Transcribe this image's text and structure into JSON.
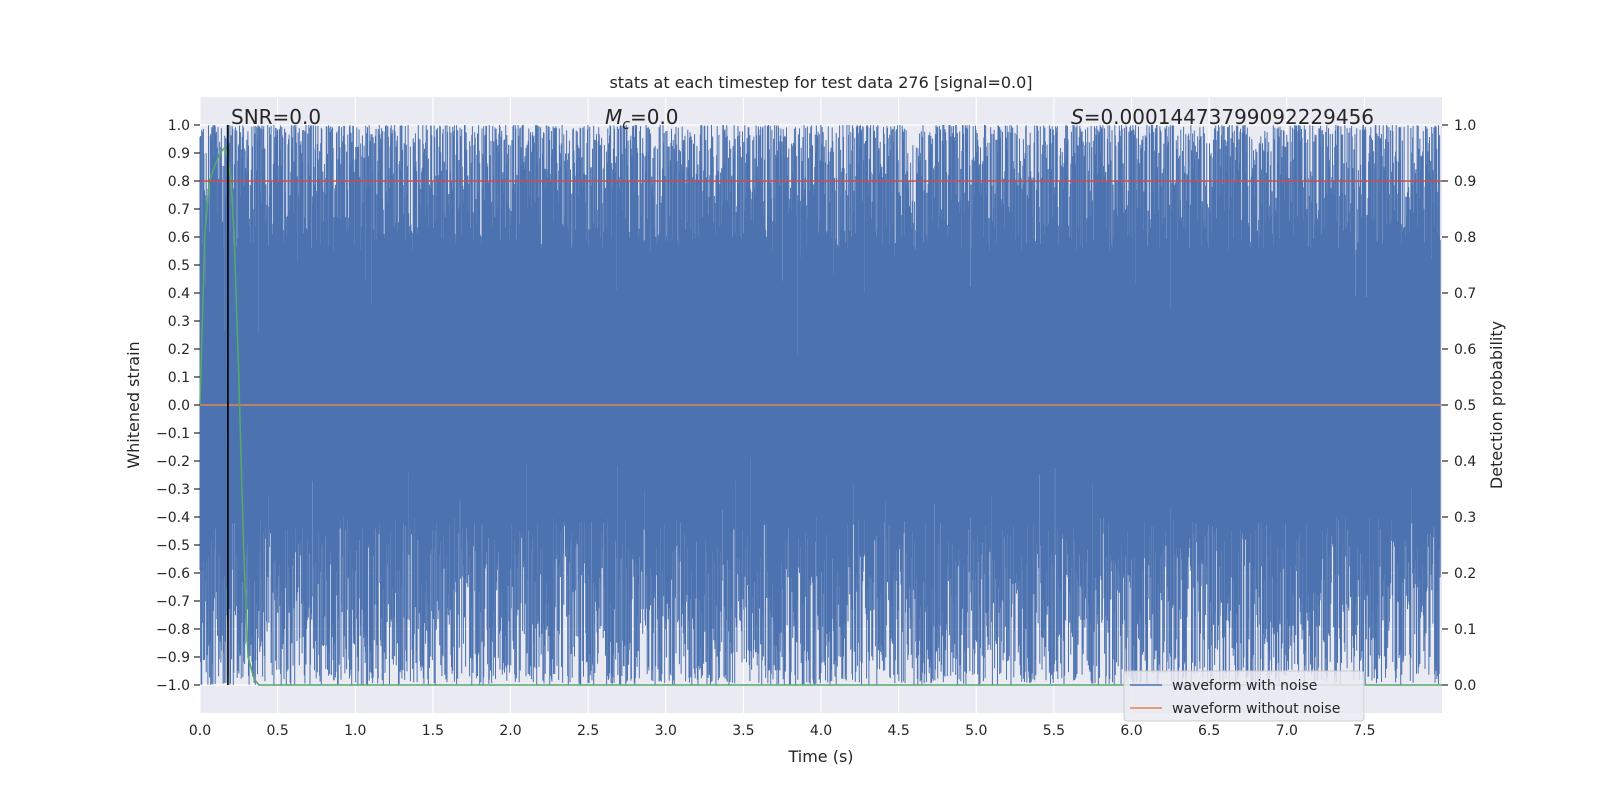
{
  "chart_data": {
    "type": "line",
    "title": "stats at each timestep for test data 276 [signal=0.0]",
    "xlabel": "Time (s)",
    "ylabel": "Whitened strain",
    "ylabel_right": "Detection probability",
    "xlim": [
      0.0,
      8.0
    ],
    "ylim": [
      -1.1,
      1.1
    ],
    "ylim_right": [
      -0.05,
      1.05
    ],
    "x_ticks": [
      0.0,
      0.5,
      1.0,
      1.5,
      2.0,
      2.5,
      3.0,
      3.5,
      4.0,
      4.5,
      5.0,
      5.5,
      6.0,
      6.5,
      7.0,
      7.5
    ],
    "x_tick_labels": [
      "0.0",
      "0.5",
      "1.0",
      "1.5",
      "2.0",
      "2.5",
      "3.0",
      "3.5",
      "4.0",
      "4.5",
      "5.0",
      "5.5",
      "6.0",
      "6.5",
      "7.0",
      "7.5"
    ],
    "y_ticks": [
      1.0,
      0.9,
      0.8,
      0.7,
      0.6,
      0.5,
      0.4,
      0.3,
      0.2,
      0.1,
      0.0,
      -0.1,
      -0.2,
      -0.3,
      -0.4,
      -0.5,
      -0.6,
      -0.7,
      -0.8,
      -0.9,
      -1.0
    ],
    "y_tick_labels": [
      "1.0",
      "0.9",
      "0.8",
      "0.7",
      "0.6",
      "0.5",
      "0.4",
      "0.3",
      "0.2",
      "0.1",
      "0.0",
      "−0.1",
      "−0.2",
      "−0.3",
      "−0.4",
      "−0.5",
      "−0.6",
      "−0.7",
      "−0.8",
      "−0.9",
      "−1.0"
    ],
    "y_right_ticks": [
      1.0,
      0.9,
      0.8,
      0.7,
      0.6,
      0.5,
      0.4,
      0.3,
      0.2,
      0.1,
      0.0
    ],
    "y_right_tick_labels": [
      "1.0",
      "0.9",
      "0.8",
      "0.7",
      "0.6",
      "0.5",
      "0.4",
      "0.3",
      "0.2",
      "0.1",
      "0.0"
    ],
    "grid": true,
    "legend_position": "lower-right",
    "annotations": {
      "snr": "SNR=0.0",
      "mc_symbol": "M",
      "mc_sub": "c",
      "mc_value": "=0.0",
      "s_symbol": "S",
      "s_value": "=0.00014473799092229456"
    },
    "series": [
      {
        "name": "waveform with noise",
        "color": "#4c72b0",
        "description_values": {
          "range": [
            -1.0,
            1.0
          ],
          "upper_envelope_typical": [
            0.55,
            1.0
          ],
          "lower_envelope_typical": [
            -1.0,
            -0.4
          ]
        }
      },
      {
        "name": "waveform without noise",
        "color": "#dd8452",
        "x": [
          0.0,
          8.0
        ],
        "values": [
          0.0,
          0.0
        ]
      },
      {
        "axis": "right",
        "color": "#55a868",
        "x": [
          0.0,
          0.03,
          0.06,
          0.1,
          0.13,
          0.16,
          0.18,
          0.2,
          0.22,
          0.25,
          0.28,
          0.31,
          0.35,
          0.38,
          8.0
        ],
        "values": [
          0.5,
          0.8,
          0.9,
          0.93,
          0.95,
          0.96,
          0.94,
          0.9,
          0.8,
          0.55,
          0.25,
          0.05,
          0.01,
          0.0,
          0.0
        ]
      },
      {
        "axis": "right",
        "color": "#c44e52",
        "x": [
          0.0,
          8.0
        ],
        "values": [
          0.9,
          0.9
        ]
      }
    ],
    "vertical_marker": {
      "x": 0.18,
      "color": "#000000"
    },
    "colors": {
      "axes_background": "#eaeaf2",
      "grid": "#ffffff"
    }
  }
}
